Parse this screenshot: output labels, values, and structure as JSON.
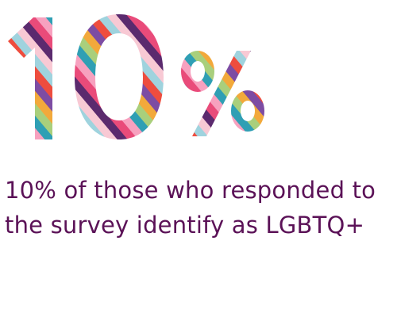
{
  "headline": {
    "number": "10",
    "symbol": "%",
    "stripe_colors": [
      "#5b2a6e",
      "#e94b7a",
      "#f7a1bf",
      "#2f9fb4",
      "#a9cf7c",
      "#f2a93b",
      "#7d4ca3",
      "#ee4d3e",
      "#9fd3de",
      "#f8c9d4"
    ]
  },
  "caption": {
    "text": "10% of those who responded to the survey identify as LGBTQ+",
    "color": "#5b1257"
  }
}
